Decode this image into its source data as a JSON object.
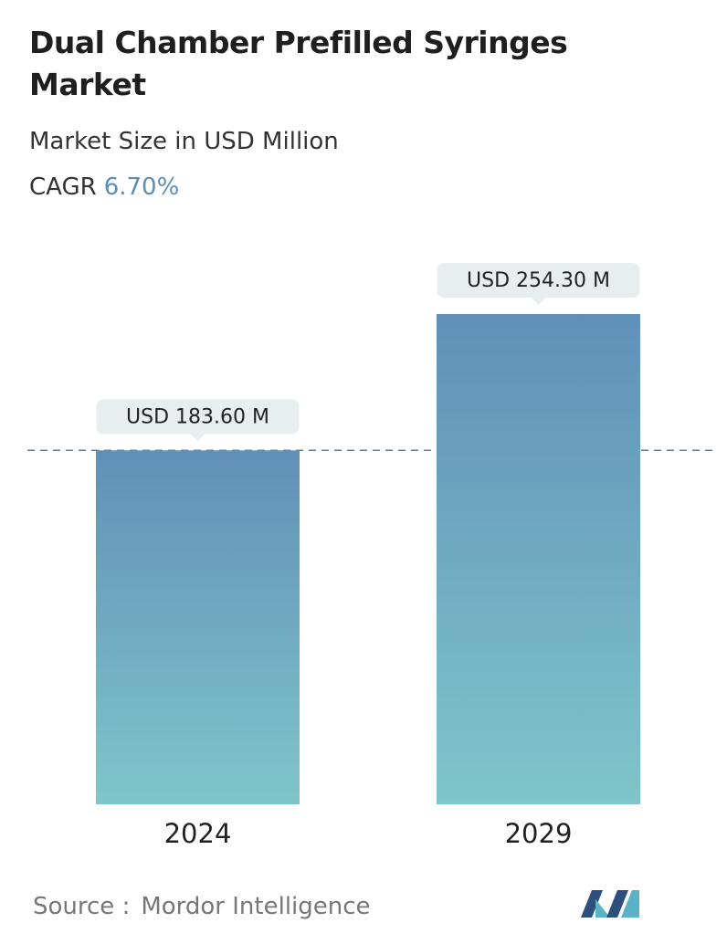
{
  "chart_data": {
    "type": "bar",
    "title": "Dual Chamber Prefilled Syringes Market",
    "subtitle": "Market Size in USD Million",
    "cagr_label": "CAGR",
    "cagr_value": "6.70%",
    "categories": [
      "2024",
      "2029"
    ],
    "values": [
      183.6,
      254.3
    ],
    "value_labels": [
      "USD 183.60 M",
      "USD 254.30 M"
    ],
    "source_label": "Source :",
    "source": "Mordor Intelligence"
  }
}
